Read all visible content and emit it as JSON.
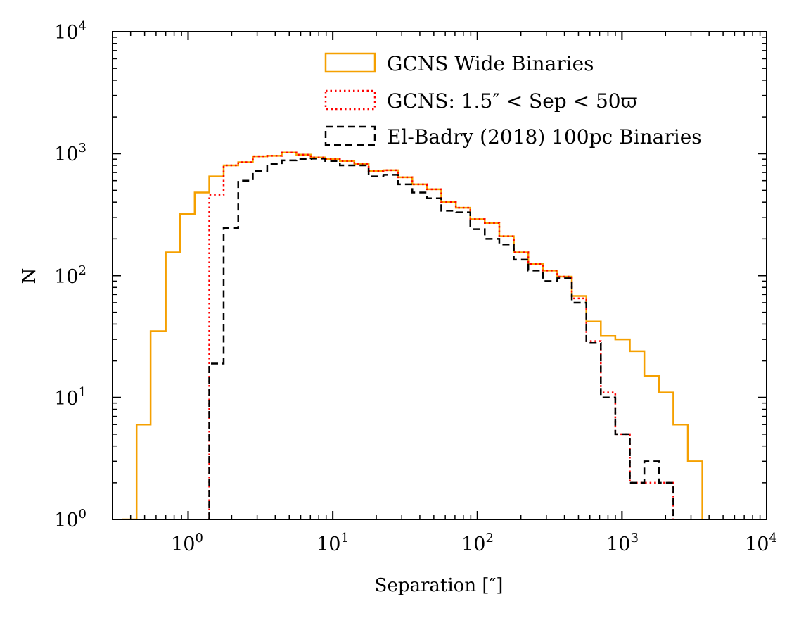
{
  "chart_data": {
    "type": "histogram-step",
    "xscale": "log",
    "yscale": "log",
    "xlabel": "Separation [″]",
    "ylabel": "N",
    "xlim": [
      0.3,
      10000
    ],
    "ylim": [
      1,
      10000
    ],
    "x_ticks": [
      {
        "base": "10",
        "exp": "0",
        "value": 1
      },
      {
        "base": "10",
        "exp": "1",
        "value": 10
      },
      {
        "base": "10",
        "exp": "2",
        "value": 100
      },
      {
        "base": "10",
        "exp": "3",
        "value": 1000
      },
      {
        "base": "10",
        "exp": "4",
        "value": 10000
      }
    ],
    "y_ticks": [
      {
        "base": "10",
        "exp": "0",
        "value": 1
      },
      {
        "base": "10",
        "exp": "1",
        "value": 10
      },
      {
        "base": "10",
        "exp": "2",
        "value": 100
      },
      {
        "base": "10",
        "exp": "3",
        "value": 1000
      },
      {
        "base": "10",
        "exp": "4",
        "value": 10000
      }
    ],
    "legend_position": "upper-right",
    "series": [
      {
        "name": "GCNS Wide Binaries",
        "color": "#f5a000",
        "style": "solid",
        "bin_edges": [
          0.35,
          0.44,
          0.55,
          0.7,
          0.88,
          1.11,
          1.4,
          1.76,
          2.22,
          2.8,
          3.52,
          4.44,
          5.6,
          7.04,
          8.87,
          11.2,
          14.1,
          17.7,
          22.4,
          28.2,
          35.5,
          44.7,
          56.3,
          71.0,
          89.4,
          112.5,
          141.8,
          178.6,
          225.0,
          283.4,
          357.0,
          450.0,
          567.0,
          714.0,
          899.0,
          1133.0,
          1427.0,
          1798.0,
          2265.0,
          2853.0,
          3594.0
        ],
        "counts": [
          1,
          6,
          35,
          155,
          320,
          480,
          650,
          800,
          850,
          950,
          960,
          1020,
          980,
          930,
          900,
          870,
          820,
          720,
          730,
          640,
          560,
          510,
          400,
          360,
          290,
          270,
          210,
          155,
          125,
          110,
          98,
          68,
          42,
          32,
          30,
          24,
          15,
          11,
          6,
          3
        ]
      },
      {
        "name": "GCNS: 1.5″ < Sep < 50ϖ",
        "color": "#ff0000",
        "style": "dotted",
        "bin_edges": [
          1.4,
          1.76,
          2.22,
          2.8,
          3.52,
          4.44,
          5.6,
          7.04,
          8.87,
          11.2,
          14.1,
          17.7,
          22.4,
          28.2,
          35.5,
          44.7,
          56.3,
          71.0,
          89.4,
          112.5,
          141.8,
          178.6,
          225.0,
          283.4,
          357.0,
          450.0,
          567.0,
          714.0,
          899.0,
          1133.0,
          1427.0,
          1798.0,
          2265.0
        ],
        "counts": [
          460,
          800,
          850,
          950,
          960,
          1020,
          980,
          930,
          900,
          870,
          820,
          720,
          730,
          640,
          560,
          510,
          400,
          360,
          290,
          270,
          210,
          155,
          125,
          110,
          98,
          65,
          29,
          11,
          5,
          2,
          2,
          2
        ]
      },
      {
        "name": "El-Badry (2018) 100pc Binaries",
        "color": "#000000",
        "style": "dashed",
        "bin_edges": [
          1.4,
          1.76,
          2.22,
          2.8,
          3.52,
          4.44,
          5.6,
          7.04,
          8.87,
          11.2,
          14.1,
          17.7,
          22.4,
          28.2,
          35.5,
          44.7,
          56.3,
          71.0,
          89.4,
          112.5,
          141.8,
          178.6,
          225.0,
          283.4,
          357.0,
          450.0,
          567.0,
          714.0,
          899.0,
          1133.0,
          1427.0,
          1798.0,
          2265.0
        ],
        "counts": [
          19,
          245,
          600,
          720,
          820,
          880,
          900,
          910,
          870,
          800,
          800,
          650,
          670,
          560,
          480,
          430,
          340,
          330,
          240,
          200,
          180,
          135,
          110,
          90,
          95,
          60,
          28,
          10,
          5,
          2,
          3,
          2
        ]
      }
    ]
  }
}
